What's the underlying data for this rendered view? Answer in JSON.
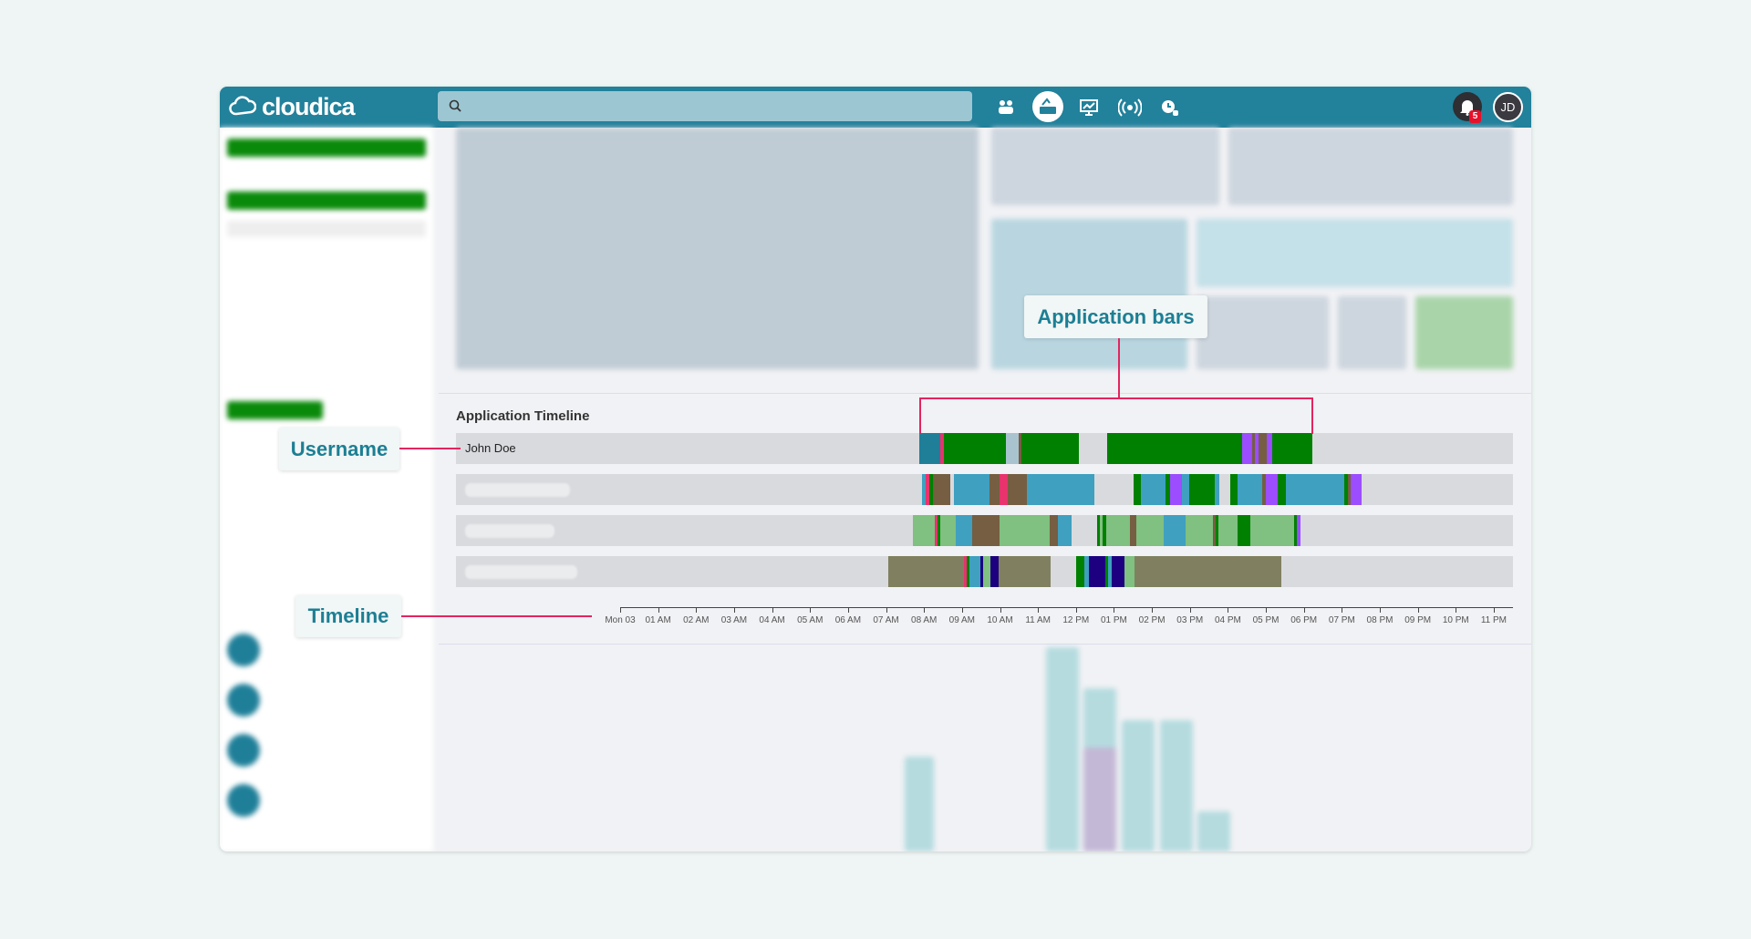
{
  "header": {
    "logo_text": "cloudica",
    "search_placeholder": "",
    "icons": [
      "people-icon",
      "keyboard-activity-icon",
      "monitor-chart-icon",
      "broadcast-icon",
      "user-clock-icon"
    ],
    "notification_count": "5",
    "avatar_initials": "JD",
    "color": "#22819b"
  },
  "timeline": {
    "title": "Application Timeline",
    "axis_labels": [
      "Mon 03",
      "01 AM",
      "02 AM",
      "03 AM",
      "04 AM",
      "05 AM",
      "06 AM",
      "07 AM",
      "08 AM",
      "09 AM",
      "10 AM",
      "11 AM",
      "12 PM",
      "01 PM",
      "02 PM",
      "03 PM",
      "04 PM",
      "05 PM",
      "06 PM",
      "07 PM",
      "08 PM",
      "09 PM",
      "10 PM",
      "11 PM"
    ],
    "colors": {
      "green": "#008000",
      "teal": "#1f7f99",
      "pink": "#e8336d",
      "brown": "#765e42",
      "blue": "#3fa0c0",
      "purple": "#9b4dff",
      "lightgreen": "#80c080",
      "olive": "#808060",
      "navy": "#1c0080",
      "greyblue": "#a9c4cf"
    },
    "rows": [
      {
        "username": "John Doe",
        "bars": [
          [
            "07:52",
            "08:25",
            "teal"
          ],
          [
            "08:25",
            "08:32",
            "pink"
          ],
          [
            "08:32",
            "10:09",
            "green"
          ],
          [
            "10:09",
            "10:29",
            "greyblue"
          ],
          [
            "10:29",
            "10:34",
            "brown"
          ],
          [
            "10:34",
            "12:04",
            "green"
          ],
          [
            "12:49",
            "16:23",
            "green"
          ],
          [
            "16:23",
            "16:38",
            "purple"
          ],
          [
            "16:38",
            "16:43",
            "brown"
          ],
          [
            "16:43",
            "16:49",
            "purple"
          ],
          [
            "16:49",
            "17:02",
            "brown"
          ],
          [
            "17:02",
            "17:10",
            "purple"
          ],
          [
            "17:10",
            "18:13",
            "green"
          ]
        ]
      },
      {
        "username": "",
        "bars": [
          [
            "07:57",
            "08:02",
            "blue"
          ],
          [
            "08:02",
            "08:09",
            "pink"
          ],
          [
            "08:09",
            "08:14",
            "green"
          ],
          [
            "08:14",
            "08:42",
            "brown"
          ],
          [
            "08:47",
            "09:44",
            "blue"
          ],
          [
            "09:44",
            "09:59",
            "brown"
          ],
          [
            "09:59",
            "10:12",
            "pink"
          ],
          [
            "10:12",
            "10:42",
            "brown"
          ],
          [
            "10:42",
            "12:29",
            "blue"
          ],
          [
            "13:31",
            "13:43",
            "green"
          ],
          [
            "13:43",
            "14:21",
            "blue"
          ],
          [
            "14:21",
            "14:28",
            "green"
          ],
          [
            "14:28",
            "14:47",
            "purple"
          ],
          [
            "14:47",
            "14:59",
            "blue"
          ],
          [
            "14:59",
            "15:39",
            "green"
          ],
          [
            "15:39",
            "15:47",
            "blue"
          ],
          [
            "16:04",
            "16:15",
            "green"
          ],
          [
            "16:15",
            "16:54",
            "blue"
          ],
          [
            "16:54",
            "17:00",
            "brown"
          ],
          [
            "17:00",
            "17:19",
            "purple"
          ],
          [
            "17:19",
            "17:32",
            "green"
          ],
          [
            "17:32",
            "19:04",
            "blue"
          ],
          [
            "19:04",
            "19:09",
            "green"
          ],
          [
            "19:09",
            "19:14",
            "brown"
          ],
          [
            "19:14",
            "19:31",
            "purple"
          ]
        ]
      },
      {
        "username": "",
        "bars": [
          [
            "07:43",
            "08:17",
            "lightgreen"
          ],
          [
            "08:17",
            "08:21",
            "pink"
          ],
          [
            "08:21",
            "08:25",
            "green"
          ],
          [
            "08:25",
            "08:50",
            "lightgreen"
          ],
          [
            "08:50",
            "09:16",
            "blue"
          ],
          [
            "09:16",
            "09:59",
            "brown"
          ],
          [
            "09:59",
            "11:19",
            "lightgreen"
          ],
          [
            "11:19",
            "11:31",
            "brown"
          ],
          [
            "11:31",
            "11:53",
            "blue"
          ],
          [
            "12:33",
            "12:38",
            "green"
          ],
          [
            "12:38",
            "12:42",
            "lightgreen"
          ],
          [
            "12:42",
            "12:48",
            "green"
          ],
          [
            "12:48",
            "13:26",
            "lightgreen"
          ],
          [
            "13:26",
            "13:36",
            "brown"
          ],
          [
            "13:36",
            "14:18",
            "lightgreen"
          ],
          [
            "14:18",
            "14:53",
            "blue"
          ],
          [
            "14:53",
            "15:36",
            "lightgreen"
          ],
          [
            "15:36",
            "15:41",
            "brown"
          ],
          [
            "15:41",
            "15:45",
            "green"
          ],
          [
            "15:45",
            "16:15",
            "lightgreen"
          ],
          [
            "16:15",
            "16:35",
            "green"
          ],
          [
            "16:35",
            "17:44",
            "lightgreen"
          ],
          [
            "17:44",
            "17:49",
            "green"
          ],
          [
            "17:49",
            "17:55",
            "purple"
          ]
        ]
      },
      {
        "username": "",
        "bars": [
          [
            "07:04",
            "09:03",
            "olive"
          ],
          [
            "09:03",
            "09:07",
            "pink"
          ],
          [
            "09:07",
            "09:12",
            "green"
          ],
          [
            "09:12",
            "09:29",
            "blue"
          ],
          [
            "09:29",
            "09:34",
            "navy"
          ],
          [
            "09:34",
            "09:45",
            "lightgreen"
          ],
          [
            "09:45",
            "09:58",
            "navy"
          ],
          [
            "09:58",
            "11:20",
            "olive"
          ],
          [
            "12:00",
            "12:13",
            "green"
          ],
          [
            "12:13",
            "12:20",
            "blue"
          ],
          [
            "12:20",
            "12:47",
            "navy"
          ],
          [
            "12:47",
            "12:51",
            "green"
          ],
          [
            "12:51",
            "12:56",
            "blue"
          ],
          [
            "12:56",
            "13:16",
            "navy"
          ],
          [
            "13:16",
            "13:33",
            "lightgreen"
          ],
          [
            "13:33",
            "17:24",
            "olive"
          ]
        ]
      }
    ]
  },
  "annotations": {
    "bars": "Application bars",
    "username": "Username",
    "timeline": "Timeline",
    "color": "#e4245f"
  }
}
